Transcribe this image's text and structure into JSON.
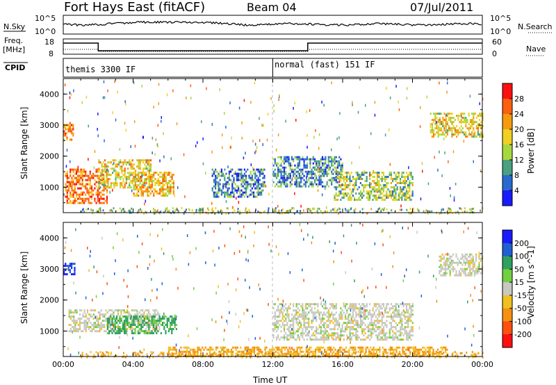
{
  "header": {
    "title": "Fort Hays East (fitACF)",
    "beam": "Beam 04",
    "date": "07/Jul/2011"
  },
  "summary": {
    "nsky_label": "N.Sky",
    "nsearch_label": "N.Search",
    "noise_ticks_left": [
      "10^5",
      "10^0"
    ],
    "noise_ticks_right": [
      "10^5",
      "10^0"
    ],
    "freq_label": "Freq.",
    "freq_unit": "[MHz]",
    "freq_ticks": [
      "18",
      "8"
    ],
    "nave_label": "Nave",
    "nave_ticks": [
      "60",
      "0"
    ],
    "cpid_label": "CPID",
    "cpid_segments": [
      {
        "label": "themis 3300 IF",
        "start_hour": 0,
        "end_hour": 12
      },
      {
        "label": "normal (fast) 151 IF",
        "start_hour": 12,
        "end_hour": 24
      }
    ],
    "freq_steps": [
      {
        "start_hour": 0,
        "end_hour": 2,
        "level": "high"
      },
      {
        "start_hour": 2,
        "end_hour": 14,
        "level": "low"
      },
      {
        "start_hour": 14,
        "end_hour": 24,
        "level": "high"
      }
    ]
  },
  "chart_data": [
    {
      "type": "heatmap",
      "panel": "power",
      "ylabel": "Slant Range [km]",
      "xlabel": "Time UT",
      "x_ticks": [
        "00:00",
        "04:00",
        "08:00",
        "12:00",
        "16:00",
        "20:00",
        "00:00"
      ],
      "x_range_hours": [
        0,
        24
      ],
      "y_ticks": [
        "1000",
        "2000",
        "3000",
        "4000"
      ],
      "y_range_km": [
        180,
        4500
      ],
      "colorbar_label": "Power [dB]",
      "colorbar_ticks": [
        "4",
        "8",
        "12",
        "16",
        "20",
        "24",
        "28"
      ],
      "colorbar_range": [
        0,
        32
      ],
      "colorbar_colors": [
        "#1a1aff",
        "#2a6ad0",
        "#4aa080",
        "#a8d840",
        "#f0d020",
        "#f59a10",
        "#ff6010",
        "#ff1010"
      ],
      "echo_regions": [
        {
          "t0": 0.0,
          "t1": 0.6,
          "r0": 2500,
          "r1": 3100,
          "value": 22
        },
        {
          "t0": 0.1,
          "t1": 2.5,
          "r0": 500,
          "r1": 1600,
          "value": 24
        },
        {
          "t0": 2.0,
          "t1": 5.0,
          "r0": 1000,
          "r1": 1900,
          "value": 18
        },
        {
          "t0": 4.0,
          "t1": 6.3,
          "r0": 700,
          "r1": 1500,
          "value": 20
        },
        {
          "t0": 8.5,
          "t1": 11.5,
          "r0": 700,
          "r1": 1600,
          "value": 8
        },
        {
          "t0": 12.0,
          "t1": 16.0,
          "r0": 1000,
          "r1": 2000,
          "value": 9
        },
        {
          "t0": 15.5,
          "t1": 20.0,
          "r0": 600,
          "r1": 1500,
          "value": 14
        },
        {
          "t0": 21.0,
          "t1": 24.0,
          "r0": 2600,
          "r1": 3400,
          "value": 18
        }
      ]
    },
    {
      "type": "heatmap",
      "panel": "velocity",
      "ylabel": "Slant Range [km]",
      "xlabel": "Time UT",
      "x_ticks": [
        "00:00",
        "04:00",
        "08:00",
        "12:00",
        "16:00",
        "20:00",
        "00:00"
      ],
      "x_range_hours": [
        0,
        24
      ],
      "y_ticks": [
        "1000",
        "2000",
        "3000",
        "4000"
      ],
      "y_range_km": [
        180,
        4500
      ],
      "colorbar_label": "Velocity [m s^-1]",
      "colorbar_ticks": [
        "200",
        "100",
        "50",
        "15",
        "-15",
        "-50",
        "-100",
        "-200"
      ],
      "colorbar_colors": [
        "#1a1aff",
        "#2060d0",
        "#30a060",
        "#70d040",
        "#c8c8c0",
        "#f0c020",
        "#f59010",
        "#ff5010",
        "#ff1010"
      ],
      "echo_regions": [
        {
          "t0": 0.0,
          "t1": 0.7,
          "r0": 2800,
          "r1": 3200,
          "value": 200
        },
        {
          "t0": 0.3,
          "t1": 5.5,
          "r0": 1000,
          "r1": 1700,
          "value": 0
        },
        {
          "t0": 2.5,
          "t1": 6.5,
          "r0": 900,
          "r1": 1500,
          "value": 60
        },
        {
          "t0": 12.0,
          "t1": 20.0,
          "r0": 700,
          "r1": 1900,
          "value": 0
        },
        {
          "t0": 6.0,
          "t1": 22.0,
          "r0": 180,
          "r1": 500,
          "value": -50
        },
        {
          "t0": 21.5,
          "t1": 24.0,
          "r0": 2800,
          "r1": 3500,
          "value": 0
        }
      ]
    }
  ]
}
